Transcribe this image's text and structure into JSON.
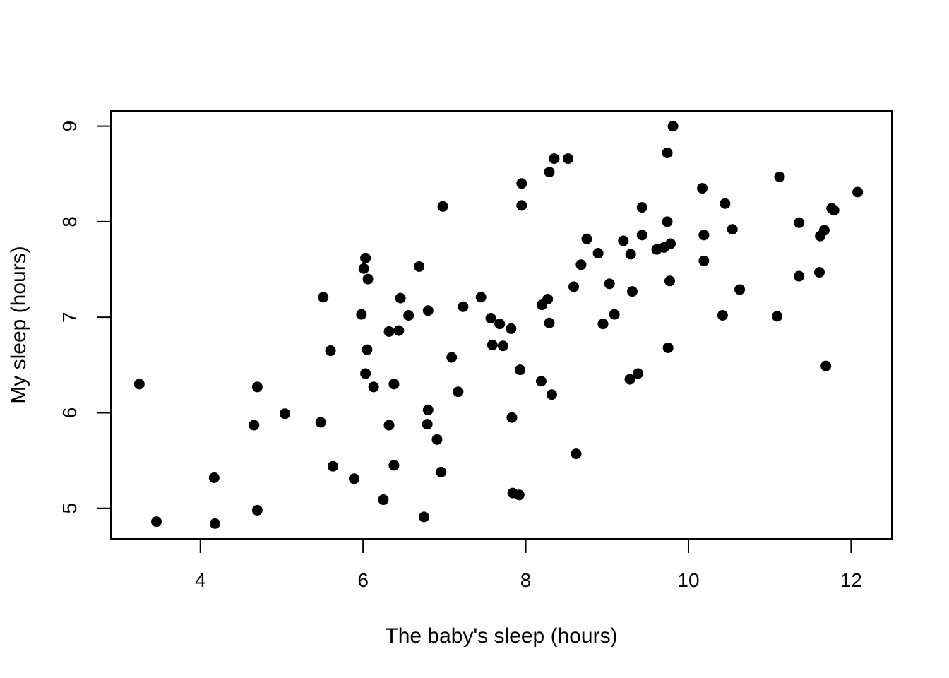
{
  "chart_data": {
    "type": "scatter",
    "title": "",
    "xlabel": "The baby's sleep (hours)",
    "ylabel": "My sleep (hours)",
    "xlim": [
      2.9,
      12.5
    ],
    "ylim": [
      4.68,
      9.16
    ],
    "xticks": [
      4,
      6,
      8,
      10,
      12
    ],
    "yticks": [
      5,
      6,
      7,
      8,
      9
    ],
    "grid": false,
    "legend": "none",
    "point_color": "#000000",
    "points": [
      {
        "x": 3.25,
        "y": 6.3
      },
      {
        "x": 3.46,
        "y": 4.86
      },
      {
        "x": 4.17,
        "y": 5.32
      },
      {
        "x": 4.18,
        "y": 4.84
      },
      {
        "x": 4.66,
        "y": 5.87
      },
      {
        "x": 4.7,
        "y": 6.27
      },
      {
        "x": 4.7,
        "y": 4.98
      },
      {
        "x": 5.04,
        "y": 5.99
      },
      {
        "x": 5.48,
        "y": 5.9
      },
      {
        "x": 5.51,
        "y": 7.21
      },
      {
        "x": 5.6,
        "y": 6.65
      },
      {
        "x": 5.63,
        "y": 5.44
      },
      {
        "x": 5.89,
        "y": 5.31
      },
      {
        "x": 5.98,
        "y": 7.03
      },
      {
        "x": 6.01,
        "y": 7.51
      },
      {
        "x": 6.03,
        "y": 7.62
      },
      {
        "x": 6.03,
        "y": 6.41
      },
      {
        "x": 6.05,
        "y": 6.66
      },
      {
        "x": 6.06,
        "y": 7.4
      },
      {
        "x": 6.13,
        "y": 6.27
      },
      {
        "x": 6.25,
        "y": 5.09
      },
      {
        "x": 6.32,
        "y": 6.85
      },
      {
        "x": 6.32,
        "y": 5.87
      },
      {
        "x": 6.38,
        "y": 6.3
      },
      {
        "x": 6.38,
        "y": 5.45
      },
      {
        "x": 6.44,
        "y": 6.86
      },
      {
        "x": 6.46,
        "y": 7.2
      },
      {
        "x": 6.56,
        "y": 7.02
      },
      {
        "x": 6.69,
        "y": 7.53
      },
      {
        "x": 6.75,
        "y": 4.91
      },
      {
        "x": 6.79,
        "y": 5.88
      },
      {
        "x": 6.8,
        "y": 7.07
      },
      {
        "x": 6.8,
        "y": 6.03
      },
      {
        "x": 6.91,
        "y": 5.72
      },
      {
        "x": 6.96,
        "y": 5.38
      },
      {
        "x": 6.98,
        "y": 8.16
      },
      {
        "x": 7.09,
        "y": 6.58
      },
      {
        "x": 7.17,
        "y": 6.22
      },
      {
        "x": 7.23,
        "y": 7.11
      },
      {
        "x": 7.45,
        "y": 7.21
      },
      {
        "x": 7.57,
        "y": 6.99
      },
      {
        "x": 7.59,
        "y": 6.71
      },
      {
        "x": 7.68,
        "y": 6.93
      },
      {
        "x": 7.72,
        "y": 6.7
      },
      {
        "x": 7.82,
        "y": 6.88
      },
      {
        "x": 7.83,
        "y": 5.95
      },
      {
        "x": 7.84,
        "y": 5.16
      },
      {
        "x": 7.92,
        "y": 5.14
      },
      {
        "x": 7.93,
        "y": 6.45
      },
      {
        "x": 7.95,
        "y": 8.4
      },
      {
        "x": 7.95,
        "y": 8.17
      },
      {
        "x": 8.19,
        "y": 6.33
      },
      {
        "x": 8.2,
        "y": 7.13
      },
      {
        "x": 8.27,
        "y": 7.19
      },
      {
        "x": 8.29,
        "y": 8.52
      },
      {
        "x": 8.29,
        "y": 6.94
      },
      {
        "x": 8.32,
        "y": 6.19
      },
      {
        "x": 8.35,
        "y": 8.66
      },
      {
        "x": 8.52,
        "y": 8.66
      },
      {
        "x": 8.59,
        "y": 7.32
      },
      {
        "x": 8.62,
        "y": 5.57
      },
      {
        "x": 8.68,
        "y": 7.55
      },
      {
        "x": 8.75,
        "y": 7.82
      },
      {
        "x": 8.89,
        "y": 7.67
      },
      {
        "x": 8.95,
        "y": 6.93
      },
      {
        "x": 9.03,
        "y": 7.35
      },
      {
        "x": 9.09,
        "y": 7.03
      },
      {
        "x": 9.2,
        "y": 7.8
      },
      {
        "x": 9.28,
        "y": 6.35
      },
      {
        "x": 9.29,
        "y": 7.66
      },
      {
        "x": 9.31,
        "y": 7.27
      },
      {
        "x": 9.38,
        "y": 6.41
      },
      {
        "x": 9.43,
        "y": 8.15
      },
      {
        "x": 9.43,
        "y": 7.86
      },
      {
        "x": 9.61,
        "y": 7.71
      },
      {
        "x": 9.7,
        "y": 7.73
      },
      {
        "x": 9.74,
        "y": 8.72
      },
      {
        "x": 9.74,
        "y": 8.0
      },
      {
        "x": 9.75,
        "y": 6.68
      },
      {
        "x": 9.77,
        "y": 7.38
      },
      {
        "x": 9.78,
        "y": 7.77
      },
      {
        "x": 9.81,
        "y": 9.0
      },
      {
        "x": 10.17,
        "y": 8.35
      },
      {
        "x": 10.19,
        "y": 7.86
      },
      {
        "x": 10.19,
        "y": 7.59
      },
      {
        "x": 10.42,
        "y": 7.02
      },
      {
        "x": 10.45,
        "y": 8.19
      },
      {
        "x": 10.54,
        "y": 7.92
      },
      {
        "x": 10.63,
        "y": 7.29
      },
      {
        "x": 11.09,
        "y": 7.01
      },
      {
        "x": 11.12,
        "y": 8.47
      },
      {
        "x": 11.36,
        "y": 7.99
      },
      {
        "x": 11.36,
        "y": 7.43
      },
      {
        "x": 11.61,
        "y": 7.47
      },
      {
        "x": 11.62,
        "y": 7.85
      },
      {
        "x": 11.67,
        "y": 7.91
      },
      {
        "x": 11.69,
        "y": 6.49
      },
      {
        "x": 11.76,
        "y": 8.14
      },
      {
        "x": 11.79,
        "y": 8.12
      },
      {
        "x": 12.08,
        "y": 8.31
      }
    ]
  }
}
